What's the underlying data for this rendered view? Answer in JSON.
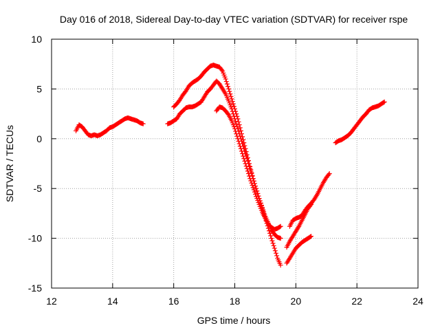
{
  "chart_data": {
    "type": "scatter",
    "title": "Day 016 of 2018, Sidereal Day-to-day VTEC variation (SDTVAR) for receiver rspe",
    "xlabel": "GPS time / hours",
    "ylabel": "SDTVAR / TECUs",
    "xlim": [
      12,
      24
    ],
    "ylim": [
      -15,
      10
    ],
    "xticks": [
      12,
      14,
      16,
      18,
      20,
      22,
      24
    ],
    "yticks": [
      10,
      5,
      0,
      -5,
      -10,
      -15
    ],
    "grid": true,
    "marker": "+",
    "series": [
      {
        "color": "#ff0000",
        "segments": [
          [
            [
              12.8,
              0.8
            ],
            [
              12.9,
              1.4
            ],
            [
              13.0,
              1.2
            ],
            [
              13.1,
              0.8
            ],
            [
              13.2,
              0.4
            ],
            [
              13.3,
              0.3
            ],
            [
              13.4,
              0.4
            ],
            [
              13.5,
              0.3
            ],
            [
              13.6,
              0.4
            ],
            [
              13.7,
              0.6
            ],
            [
              13.8,
              0.8
            ],
            [
              13.9,
              1.1
            ],
            [
              14.0,
              1.2
            ],
            [
              14.1,
              1.4
            ],
            [
              14.2,
              1.6
            ],
            [
              14.3,
              1.8
            ],
            [
              14.4,
              2.0
            ],
            [
              14.5,
              2.1
            ],
            [
              14.6,
              2.0
            ],
            [
              14.7,
              1.9
            ],
            [
              14.8,
              1.8
            ],
            [
              14.9,
              1.6
            ],
            [
              15.0,
              1.5
            ]
          ],
          [
            [
              15.8,
              1.5
            ],
            [
              15.9,
              1.6
            ],
            [
              16.0,
              1.8
            ],
            [
              16.1,
              2.0
            ],
            [
              16.2,
              2.5
            ],
            [
              16.3,
              2.8
            ],
            [
              16.4,
              3.1
            ],
            [
              16.5,
              3.2
            ],
            [
              16.6,
              3.2
            ],
            [
              16.7,
              3.3
            ],
            [
              16.8,
              3.5
            ],
            [
              16.9,
              3.7
            ],
            [
              17.0,
              4.2
            ],
            [
              17.1,
              4.7
            ],
            [
              17.2,
              5.0
            ],
            [
              17.3,
              5.4
            ],
            [
              17.4,
              5.8
            ],
            [
              17.5,
              5.5
            ],
            [
              17.6,
              5.0
            ],
            [
              17.7,
              4.5
            ],
            [
              17.8,
              3.8
            ],
            [
              17.9,
              3.0
            ],
            [
              18.0,
              2.0
            ],
            [
              18.1,
              1.0
            ],
            [
              18.2,
              0.0
            ],
            [
              18.3,
              -1.0
            ],
            [
              18.4,
              -2.0
            ],
            [
              18.5,
              -3.0
            ],
            [
              18.6,
              -4.0
            ],
            [
              18.7,
              -5.0
            ],
            [
              18.8,
              -6.0
            ],
            [
              18.9,
              -7.0
            ],
            [
              19.0,
              -8.0
            ],
            [
              19.1,
              -9.0
            ],
            [
              19.2,
              -10.0
            ],
            [
              19.3,
              -11.0
            ],
            [
              19.4,
              -12.0
            ],
            [
              19.5,
              -12.7
            ]
          ],
          [
            [
              16.0,
              3.2
            ],
            [
              16.1,
              3.5
            ],
            [
              16.2,
              3.9
            ],
            [
              16.3,
              4.4
            ],
            [
              16.4,
              4.8
            ],
            [
              16.5,
              5.3
            ],
            [
              16.6,
              5.6
            ],
            [
              16.7,
              5.8
            ],
            [
              16.8,
              6.0
            ],
            [
              16.9,
              6.3
            ],
            [
              17.0,
              6.7
            ],
            [
              17.1,
              7.0
            ],
            [
              17.2,
              7.3
            ],
            [
              17.3,
              7.4
            ],
            [
              17.4,
              7.3
            ],
            [
              17.5,
              7.2
            ],
            [
              17.6,
              6.8
            ],
            [
              17.7,
              6.0
            ],
            [
              17.8,
              5.0
            ],
            [
              17.9,
              4.0
            ],
            [
              18.0,
              3.0
            ],
            [
              18.1,
              2.0
            ],
            [
              18.2,
              0.8
            ],
            [
              18.3,
              -0.4
            ],
            [
              18.4,
              -1.6
            ],
            [
              18.5,
              -2.8
            ],
            [
              18.6,
              -4.0
            ],
            [
              18.7,
              -5.0
            ],
            [
              18.8,
              -6.0
            ],
            [
              18.9,
              -6.9
            ],
            [
              19.0,
              -7.8
            ],
            [
              19.1,
              -8.5
            ],
            [
              19.2,
              -9.2
            ],
            [
              19.3,
              -9.6
            ],
            [
              19.4,
              -9.9
            ],
            [
              19.5,
              -10.0
            ]
          ],
          [
            [
              17.4,
              2.8
            ],
            [
              17.5,
              3.2
            ],
            [
              17.6,
              3.1
            ],
            [
              17.7,
              2.8
            ],
            [
              17.8,
              2.4
            ],
            [
              17.9,
              1.8
            ],
            [
              18.0,
              1.0
            ],
            [
              18.1,
              0.0
            ],
            [
              18.2,
              -1.0
            ],
            [
              18.3,
              -2.0
            ],
            [
              18.4,
              -3.0
            ],
            [
              18.5,
              -4.0
            ],
            [
              18.6,
              -4.9
            ],
            [
              18.7,
              -5.8
            ],
            [
              18.8,
              -6.6
            ],
            [
              18.9,
              -7.4
            ],
            [
              19.0,
              -8.0
            ],
            [
              19.1,
              -8.6
            ],
            [
              19.2,
              -8.9
            ],
            [
              19.3,
              -9.1
            ],
            [
              19.4,
              -9.0
            ],
            [
              19.5,
              -8.8
            ]
          ],
          [
            [
              19.7,
              -12.5
            ],
            [
              19.8,
              -12.0
            ],
            [
              19.9,
              -11.5
            ],
            [
              20.0,
              -11.0
            ],
            [
              20.1,
              -10.7
            ],
            [
              20.2,
              -10.4
            ],
            [
              20.3,
              -10.2
            ],
            [
              20.4,
              -10.0
            ],
            [
              20.5,
              -9.8
            ]
          ],
          [
            [
              19.7,
              -10.9
            ],
            [
              19.8,
              -10.3
            ],
            [
              19.9,
              -9.8
            ],
            [
              20.0,
              -9.3
            ],
            [
              20.1,
              -8.8
            ],
            [
              20.2,
              -8.2
            ],
            [
              20.3,
              -7.6
            ],
            [
              20.4,
              -7.0
            ],
            [
              20.5,
              -6.6
            ]
          ],
          [
            [
              19.8,
              -8.8
            ],
            [
              19.9,
              -8.2
            ],
            [
              20.0,
              -8.0
            ],
            [
              20.1,
              -7.9
            ],
            [
              20.2,
              -7.7
            ],
            [
              20.3,
              -7.2
            ],
            [
              20.4,
              -6.8
            ],
            [
              20.5,
              -6.5
            ],
            [
              20.6,
              -6.1
            ],
            [
              20.7,
              -5.6
            ],
            [
              20.8,
              -5.0
            ],
            [
              20.9,
              -4.4
            ],
            [
              21.0,
              -3.9
            ],
            [
              21.1,
              -3.5
            ]
          ],
          [
            [
              21.3,
              -0.4
            ],
            [
              21.4,
              -0.2
            ],
            [
              21.5,
              -0.1
            ],
            [
              21.6,
              0.1
            ],
            [
              21.7,
              0.3
            ],
            [
              21.8,
              0.6
            ],
            [
              21.9,
              1.0
            ],
            [
              22.0,
              1.4
            ],
            [
              22.1,
              1.8
            ],
            [
              22.2,
              2.2
            ],
            [
              22.3,
              2.5
            ],
            [
              22.4,
              2.9
            ],
            [
              22.5,
              3.1
            ],
            [
              22.6,
              3.2
            ],
            [
              22.7,
              3.3
            ],
            [
              22.8,
              3.5
            ],
            [
              22.9,
              3.7
            ]
          ]
        ]
      }
    ]
  }
}
